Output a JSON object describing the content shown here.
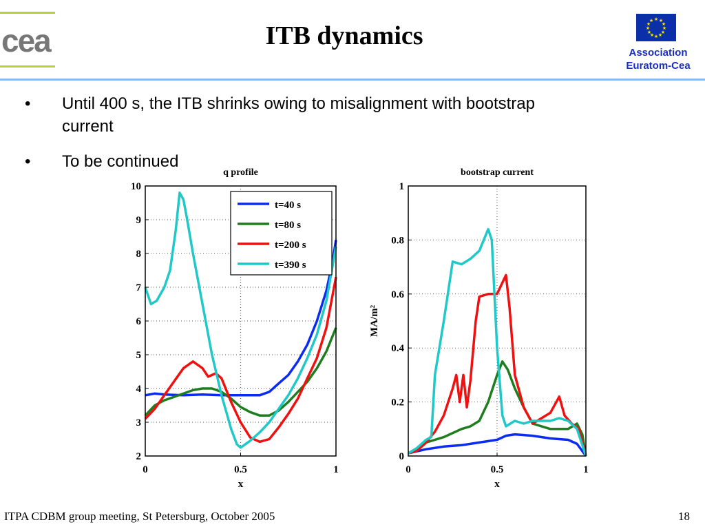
{
  "header": {
    "title": "ITB dynamics",
    "logo_text": "cea",
    "association_line1": "Association",
    "association_line2": "Euratom-Cea"
  },
  "bullets": [
    {
      "text_line1": "Until 400 s, the ITB shrinks owing to misalignment with bootstrap",
      "text_line2": "current"
    },
    {
      "text_line1": "To be continued"
    }
  ],
  "footer": {
    "left": "ITPA CDBM group meeting, St Petersburg, October 2005",
    "page": "18"
  },
  "colors": {
    "series_blue": "#0a2bf0",
    "series_green": "#1e7d1e",
    "series_red": "#f01010",
    "series_cyan": "#20c8c8",
    "accent_line": "#8ab8ff",
    "association_text": "#1a2fc0"
  },
  "chart_data": [
    {
      "type": "line",
      "title": "q profile",
      "xlabel": "x",
      "ylabel": "",
      "xlim": [
        0,
        1
      ],
      "ylim": [
        2,
        10
      ],
      "xticks": [
        "0",
        "0.5",
        "1"
      ],
      "yticks": [
        "2",
        "3",
        "4",
        "5",
        "6",
        "7",
        "8",
        "9",
        "10"
      ],
      "grid": true,
      "legend": "top-right",
      "series": [
        {
          "name": "t=40 s",
          "color": "#0a2bf0",
          "points": [
            [
              0,
              3.8
            ],
            [
              0.05,
              3.85
            ],
            [
              0.1,
              3.82
            ],
            [
              0.2,
              3.8
            ],
            [
              0.3,
              3.82
            ],
            [
              0.4,
              3.8
            ],
            [
              0.5,
              3.8
            ],
            [
              0.6,
              3.8
            ],
            [
              0.65,
              3.9
            ],
            [
              0.7,
              4.15
            ],
            [
              0.75,
              4.4
            ],
            [
              0.8,
              4.8
            ],
            [
              0.85,
              5.3
            ],
            [
              0.9,
              6.0
            ],
            [
              0.95,
              6.9
            ],
            [
              0.98,
              7.7
            ],
            [
              1.0,
              8.4
            ]
          ]
        },
        {
          "name": "t=80 s",
          "color": "#1e7d1e",
          "points": [
            [
              0,
              3.2
            ],
            [
              0.05,
              3.5
            ],
            [
              0.1,
              3.65
            ],
            [
              0.15,
              3.75
            ],
            [
              0.2,
              3.85
            ],
            [
              0.25,
              3.95
            ],
            [
              0.3,
              4.0
            ],
            [
              0.35,
              4.0
            ],
            [
              0.4,
              3.9
            ],
            [
              0.45,
              3.7
            ],
            [
              0.5,
              3.45
            ],
            [
              0.55,
              3.3
            ],
            [
              0.6,
              3.2
            ],
            [
              0.65,
              3.2
            ],
            [
              0.7,
              3.35
            ],
            [
              0.75,
              3.6
            ],
            [
              0.8,
              3.9
            ],
            [
              0.85,
              4.2
            ],
            [
              0.9,
              4.6
            ],
            [
              0.95,
              5.1
            ],
            [
              1.0,
              5.8
            ]
          ]
        },
        {
          "name": "t=200 s",
          "color": "#f01010",
          "points": [
            [
              0,
              3.1
            ],
            [
              0.05,
              3.4
            ],
            [
              0.1,
              3.8
            ],
            [
              0.15,
              4.2
            ],
            [
              0.2,
              4.6
            ],
            [
              0.25,
              4.8
            ],
            [
              0.3,
              4.6
            ],
            [
              0.33,
              4.35
            ],
            [
              0.37,
              4.45
            ],
            [
              0.4,
              4.3
            ],
            [
              0.45,
              3.6
            ],
            [
              0.5,
              3.0
            ],
            [
              0.55,
              2.55
            ],
            [
              0.6,
              2.42
            ],
            [
              0.65,
              2.5
            ],
            [
              0.7,
              2.85
            ],
            [
              0.75,
              3.25
            ],
            [
              0.8,
              3.7
            ],
            [
              0.85,
              4.3
            ],
            [
              0.9,
              4.9
            ],
            [
              0.95,
              5.8
            ],
            [
              1.0,
              7.3
            ]
          ]
        },
        {
          "name": "t=390 s",
          "color": "#20c8c8",
          "points": [
            [
              0,
              7.0
            ],
            [
              0.03,
              6.5
            ],
            [
              0.06,
              6.6
            ],
            [
              0.1,
              7.0
            ],
            [
              0.13,
              7.5
            ],
            [
              0.16,
              8.7
            ],
            [
              0.18,
              9.8
            ],
            [
              0.2,
              9.6
            ],
            [
              0.22,
              9.0
            ],
            [
              0.25,
              8.0
            ],
            [
              0.3,
              6.5
            ],
            [
              0.35,
              5.0
            ],
            [
              0.4,
              3.8
            ],
            [
              0.45,
              2.8
            ],
            [
              0.48,
              2.35
            ],
            [
              0.5,
              2.25
            ],
            [
              0.55,
              2.45
            ],
            [
              0.6,
              2.7
            ],
            [
              0.65,
              3.0
            ],
            [
              0.7,
              3.4
            ],
            [
              0.75,
              3.8
            ],
            [
              0.8,
              4.3
            ],
            [
              0.85,
              4.9
            ],
            [
              0.9,
              5.6
            ],
            [
              0.95,
              6.6
            ],
            [
              1.0,
              8.2
            ]
          ]
        }
      ]
    },
    {
      "type": "line",
      "title": "bootstrap current",
      "xlabel": "x",
      "ylabel": "MA/m²",
      "xlim": [
        0,
        1
      ],
      "ylim": [
        0,
        1
      ],
      "xticks": [
        "0",
        "0.5",
        "1"
      ],
      "yticks": [
        "0",
        "0.2",
        "0.4",
        "0.6",
        "0.8",
        "1"
      ],
      "grid": true,
      "series": [
        {
          "color": "#0a2bf0",
          "points": [
            [
              0,
              0.01
            ],
            [
              0.1,
              0.025
            ],
            [
              0.2,
              0.035
            ],
            [
              0.3,
              0.04
            ],
            [
              0.4,
              0.05
            ],
            [
              0.5,
              0.06
            ],
            [
              0.55,
              0.075
            ],
            [
              0.6,
              0.08
            ],
            [
              0.7,
              0.075
            ],
            [
              0.8,
              0.065
            ],
            [
              0.9,
              0.06
            ],
            [
              0.95,
              0.045
            ],
            [
              1.0,
              0.0
            ]
          ]
        },
        {
          "color": "#1e7d1e",
          "points": [
            [
              0,
              0.01
            ],
            [
              0.05,
              0.02
            ],
            [
              0.1,
              0.05
            ],
            [
              0.15,
              0.06
            ],
            [
              0.2,
              0.07
            ],
            [
              0.3,
              0.1
            ],
            [
              0.35,
              0.11
            ],
            [
              0.4,
              0.13
            ],
            [
              0.45,
              0.2
            ],
            [
              0.5,
              0.3
            ],
            [
              0.53,
              0.35
            ],
            [
              0.56,
              0.32
            ],
            [
              0.6,
              0.25
            ],
            [
              0.65,
              0.18
            ],
            [
              0.7,
              0.12
            ],
            [
              0.8,
              0.1
            ],
            [
              0.9,
              0.1
            ],
            [
              0.95,
              0.12
            ],
            [
              0.98,
              0.08
            ],
            [
              1.0,
              0.0
            ]
          ]
        },
        {
          "color": "#f01010",
          "points": [
            [
              0,
              0.01
            ],
            [
              0.05,
              0.02
            ],
            [
              0.1,
              0.05
            ],
            [
              0.15,
              0.09
            ],
            [
              0.2,
              0.15
            ],
            [
              0.25,
              0.25
            ],
            [
              0.27,
              0.3
            ],
            [
              0.29,
              0.2
            ],
            [
              0.31,
              0.3
            ],
            [
              0.33,
              0.18
            ],
            [
              0.35,
              0.28
            ],
            [
              0.38,
              0.5
            ],
            [
              0.4,
              0.59
            ],
            [
              0.45,
              0.6
            ],
            [
              0.5,
              0.6
            ],
            [
              0.55,
              0.67
            ],
            [
              0.57,
              0.55
            ],
            [
              0.6,
              0.3
            ],
            [
              0.65,
              0.18
            ],
            [
              0.7,
              0.12
            ],
            [
              0.75,
              0.14
            ],
            [
              0.8,
              0.16
            ],
            [
              0.85,
              0.22
            ],
            [
              0.88,
              0.15
            ],
            [
              0.92,
              0.12
            ],
            [
              0.96,
              0.1
            ],
            [
              1.0,
              0.0
            ]
          ]
        },
        {
          "color": "#20c8c8",
          "points": [
            [
              0,
              0.01
            ],
            [
              0.05,
              0.03
            ],
            [
              0.1,
              0.06
            ],
            [
              0.13,
              0.07
            ],
            [
              0.15,
              0.3
            ],
            [
              0.2,
              0.5
            ],
            [
              0.25,
              0.72
            ],
            [
              0.3,
              0.71
            ],
            [
              0.35,
              0.73
            ],
            [
              0.4,
              0.76
            ],
            [
              0.45,
              0.84
            ],
            [
              0.47,
              0.8
            ],
            [
              0.5,
              0.4
            ],
            [
              0.53,
              0.15
            ],
            [
              0.55,
              0.11
            ],
            [
              0.6,
              0.13
            ],
            [
              0.65,
              0.12
            ],
            [
              0.7,
              0.13
            ],
            [
              0.8,
              0.13
            ],
            [
              0.85,
              0.14
            ],
            [
              0.9,
              0.13
            ],
            [
              0.95,
              0.1
            ],
            [
              1.0,
              0.0
            ]
          ]
        }
      ]
    }
  ]
}
